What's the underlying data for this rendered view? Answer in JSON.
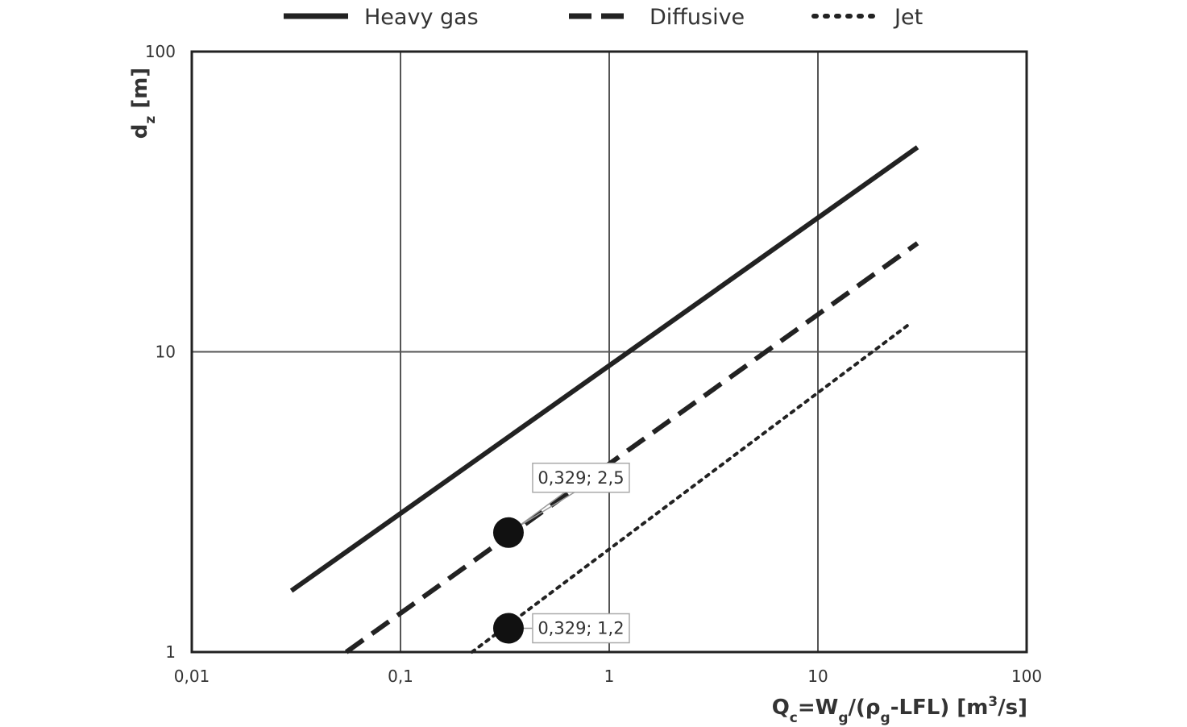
{
  "chart_data": {
    "type": "line",
    "scale": {
      "x": "log",
      "y": "log"
    },
    "xlim": [
      0.01,
      100
    ],
    "ylim": [
      1,
      100
    ],
    "grid": true,
    "legend_position": "top",
    "xlabel": {
      "main": "Q",
      "sub1": "c",
      "mid1": "=W",
      "sub2": "g",
      "mid2": "/(ρ",
      "sub3": "g",
      "mid3": "-LFL) [m",
      "sup": "3",
      "end": "/s]"
    },
    "ylabel": {
      "main": "d",
      "sub": "z",
      "end": " [m]"
    },
    "x_ticks": [
      {
        "value": 0.01,
        "label": "0,01"
      },
      {
        "value": 0.1,
        "label": "0,1"
      },
      {
        "value": 1,
        "label": "1"
      },
      {
        "value": 10,
        "label": "10"
      },
      {
        "value": 100,
        "label": "100"
      }
    ],
    "y_ticks": [
      {
        "value": 1,
        "label": "1"
      },
      {
        "value": 10,
        "label": "10"
      },
      {
        "value": 100,
        "label": "100"
      }
    ],
    "series": [
      {
        "name": "Heavy gas",
        "style": "solid",
        "color": "#222222",
        "x": [
          0.03,
          30
        ],
        "y": [
          1.6,
          48
        ]
      },
      {
        "name": "Diffusive",
        "style": "dashed",
        "color": "#222222",
        "x": [
          0.055,
          30
        ],
        "y": [
          1.0,
          23
        ]
      },
      {
        "name": "Jet",
        "style": "dotted",
        "color": "#222222",
        "x": [
          0.22,
          28
        ],
        "y": [
          1.0,
          12.5
        ]
      }
    ],
    "points": [
      {
        "x": 0.329,
        "y": 2.5,
        "label": "0,329; 2,5",
        "label_side": "upper-right"
      },
      {
        "x": 0.329,
        "y": 1.2,
        "label": "0,329; 1,2",
        "label_side": "right"
      }
    ]
  }
}
